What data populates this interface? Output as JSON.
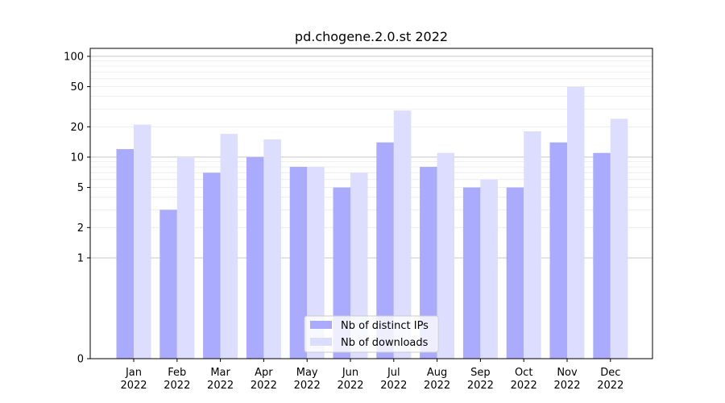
{
  "chart_data": {
    "type": "bar",
    "title": "pd.chogene.2.0.st 2022",
    "xlabel": "",
    "ylabel": "",
    "y_scale": "symlog",
    "ylim": [
      0,
      120
    ],
    "y_ticks": [
      {
        "value": 0,
        "label": "0"
      },
      {
        "value": 1,
        "label": "1"
      },
      {
        "value": 2,
        "label": "2"
      },
      {
        "value": 5,
        "label": "5"
      },
      {
        "value": 10,
        "label": "10"
      },
      {
        "value": 20,
        "label": "20"
      },
      {
        "value": 50,
        "label": "50"
      },
      {
        "value": 100,
        "label": "100"
      }
    ],
    "categories": [
      {
        "month": "Jan",
        "year": "2022"
      },
      {
        "month": "Feb",
        "year": "2022"
      },
      {
        "month": "Mar",
        "year": "2022"
      },
      {
        "month": "Apr",
        "year": "2022"
      },
      {
        "month": "May",
        "year": "2022"
      },
      {
        "month": "Jun",
        "year": "2022"
      },
      {
        "month": "Jul",
        "year": "2022"
      },
      {
        "month": "Aug",
        "year": "2022"
      },
      {
        "month": "Sep",
        "year": "2022"
      },
      {
        "month": "Oct",
        "year": "2022"
      },
      {
        "month": "Nov",
        "year": "2022"
      },
      {
        "month": "Dec",
        "year": "2022"
      }
    ],
    "series": [
      {
        "name": "Nb of distinct IPs",
        "color": "#aaaaff",
        "values": [
          12,
          3,
          7,
          10,
          8,
          5,
          14,
          8,
          5,
          5,
          14,
          11
        ]
      },
      {
        "name": "Nb of downloads",
        "color": "#ddddff",
        "values": [
          21,
          10,
          17,
          15,
          8,
          7,
          29,
          11,
          6,
          18,
          50,
          24
        ]
      }
    ],
    "grid": true,
    "legend_position": "bottom-center"
  }
}
